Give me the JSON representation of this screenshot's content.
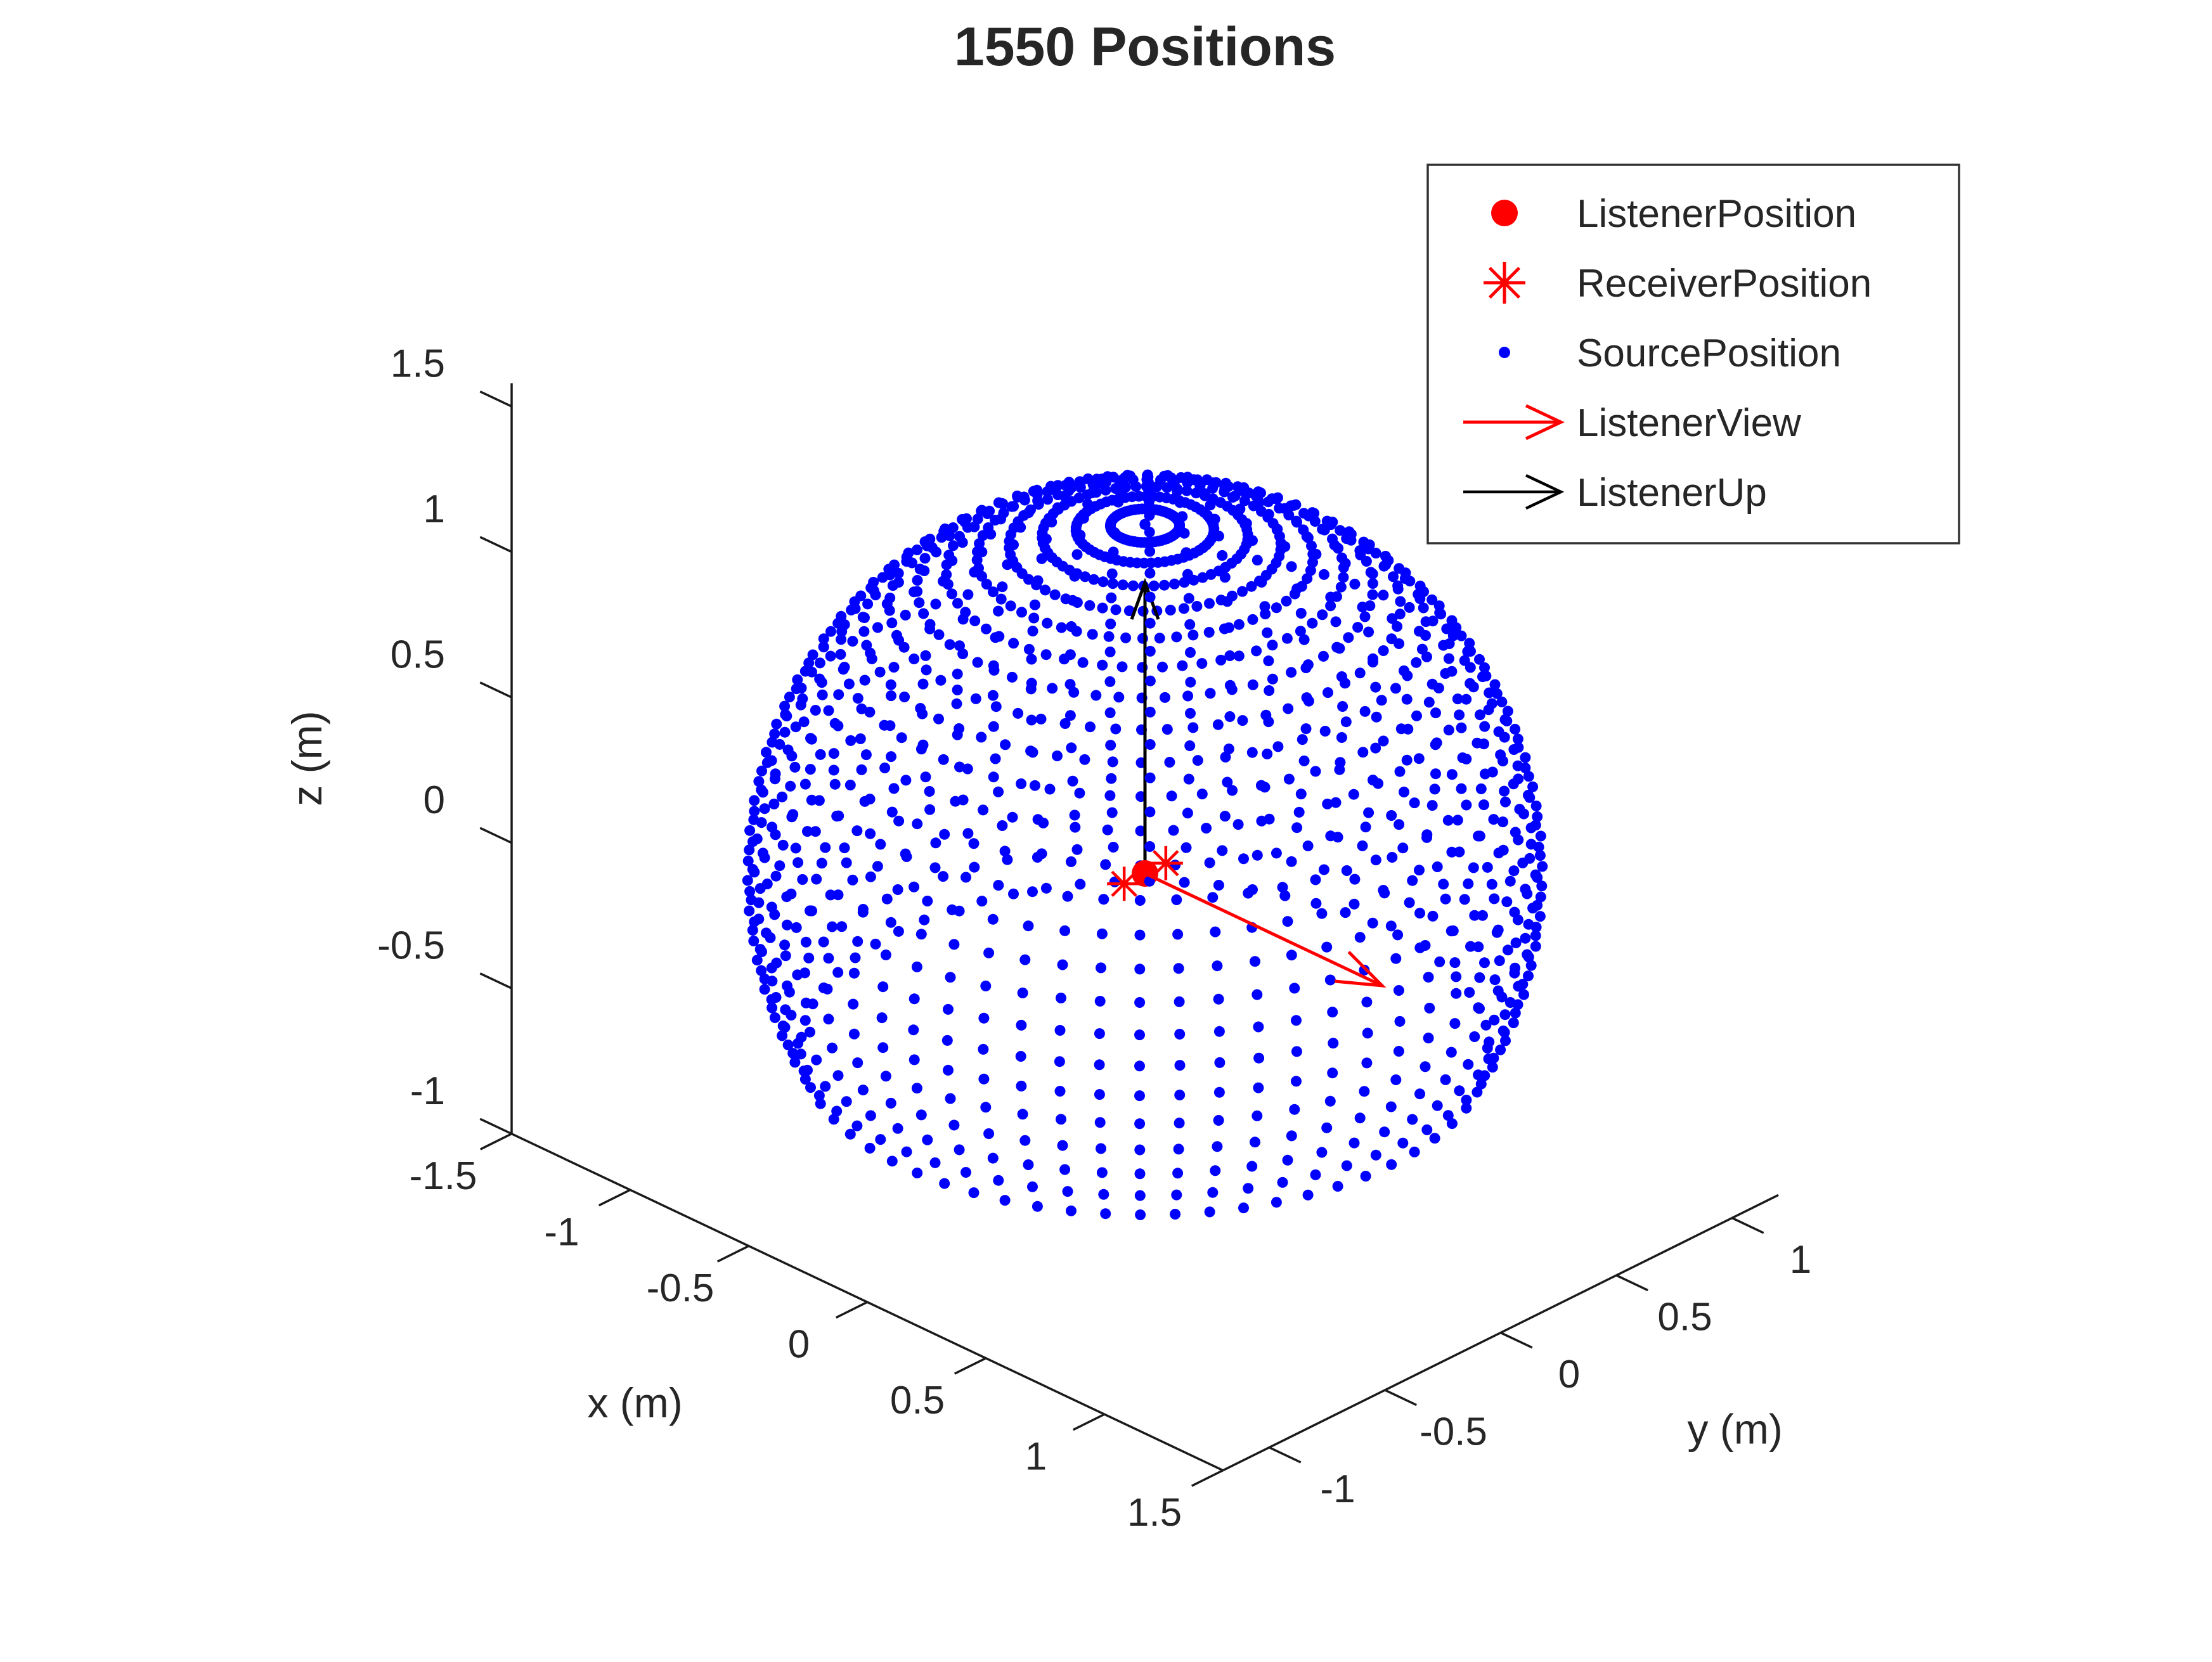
{
  "title": "1550 Positions",
  "colors": {
    "source": "#0000ff",
    "listener": "#ff0000",
    "receiver": "#ff0000",
    "view_arrow": "#ff0000",
    "up_arrow": "#000000",
    "axis": "#1a1a1a",
    "text": "#262626",
    "legend_border": "#333333",
    "background": "#ffffff"
  },
  "axes": {
    "xlabel": "x (m)",
    "ylabel": "y (m)",
    "zlabel": "z (m)",
    "xticks": [
      {
        "v": -1.5,
        "label": "-1.5"
      },
      {
        "v": -1,
        "label": "-1"
      },
      {
        "v": -0.5,
        "label": "-0.5"
      },
      {
        "v": 0,
        "label": "0"
      },
      {
        "v": 0.5,
        "label": "0.5"
      },
      {
        "v": 1,
        "label": "1"
      },
      {
        "v": 1.5,
        "label": "1.5"
      }
    ],
    "yticks": [
      {
        "v": -1,
        "label": "-1"
      },
      {
        "v": -0.5,
        "label": "-0.5"
      },
      {
        "v": 0,
        "label": "0"
      },
      {
        "v": 0.5,
        "label": "0.5"
      },
      {
        "v": 1,
        "label": "1"
      }
    ],
    "zticks": [
      {
        "v": -1,
        "label": "-1"
      },
      {
        "v": -0.5,
        "label": "-0.5"
      },
      {
        "v": 0,
        "label": "0"
      },
      {
        "v": 0.5,
        "label": "0.5"
      },
      {
        "v": 1,
        "label": "1"
      },
      {
        "v": 1.5,
        "label": "1.5"
      }
    ],
    "xlim": [
      -1.5,
      1.5
    ],
    "ylim": [
      -1.2,
      1.2
    ],
    "zlim": [
      -1,
      1.58
    ]
  },
  "legend": {
    "entries": [
      {
        "label": "ListenerPosition",
        "marker": "red-dot"
      },
      {
        "label": "ReceiverPosition",
        "marker": "red-asterisk"
      },
      {
        "label": "SourcePosition",
        "marker": "blue-dot"
      },
      {
        "label": "ListenerView",
        "marker": "red-arrow"
      },
      {
        "label": "ListenerUp",
        "marker": "black-arrow"
      }
    ]
  },
  "chart_data": {
    "type": "scatter",
    "projection": "3d",
    "title": "1550 Positions",
    "xlabel": "x (m)",
    "ylabel": "y (m)",
    "zlabel": "z (m)",
    "view": {
      "azimuth": -37.5,
      "elevation": 30
    },
    "series": [
      {
        "name": "SourcePosition",
        "marker": "point",
        "color": "#0000ff",
        "geometry": "sphere-grid",
        "radius_m": 1.2,
        "elevations_deg": {
          "start": -30,
          "step": 5,
          "count": 25
        },
        "azimuths_deg": {
          "start": 0,
          "step": 5.806,
          "count": 62
        },
        "total_points": 1550
      },
      {
        "name": "ListenerPosition",
        "marker": "filled-circle",
        "color": "#ff0000",
        "points": [
          [
            0,
            0,
            0
          ]
        ]
      },
      {
        "name": "ReceiverPosition",
        "marker": "asterisk",
        "color": "#ff0000",
        "points": [
          [
            0,
            0.09,
            0
          ],
          [
            0,
            -0.09,
            0
          ]
        ]
      },
      {
        "name": "ListenerView",
        "marker": "quiver-arrow",
        "color": "#ff0000",
        "from": [
          0,
          0,
          0
        ],
        "vector": [
          1,
          0,
          0
        ]
      },
      {
        "name": "ListenerUp",
        "marker": "quiver-arrow",
        "color": "#000000",
        "from": [
          0,
          0,
          0
        ],
        "vector": [
          0,
          0,
          1
        ]
      }
    ]
  }
}
